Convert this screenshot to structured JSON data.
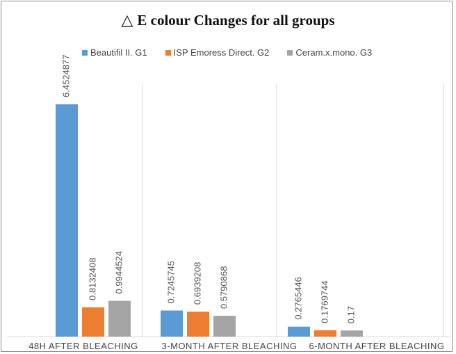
{
  "chart_data": {
    "type": "bar",
    "title_symbol": "△",
    "title": "E colour Changes for all groups",
    "categories": [
      "48H AFTER BLEACHING",
      "3-MONTH AFTER BLEACHING",
      "6-MONTH AFTER BLEACHING"
    ],
    "series": [
      {
        "name": "Beautifil II. G1",
        "color": "#5b9bd5",
        "values": [
          6.4524877,
          0.7245745,
          0.2765446
        ],
        "labels": [
          "6.4524877",
          "0.7245745",
          "0.2765446"
        ]
      },
      {
        "name": "ISP Emoress Direct. G2",
        "color": "#ed7d31",
        "values": [
          0.8132408,
          0.6939208,
          0.1769744
        ],
        "labels": [
          "0.8132408",
          "0.6939208",
          "0.1769744"
        ]
      },
      {
        "name": "Ceram.x.mono. G3",
        "color": "#a5a5a5",
        "values": [
          0.9944524,
          0.5790868,
          0.17
        ],
        "labels": [
          "0.9944524",
          "0.5790868",
          "0.17"
        ]
      }
    ],
    "ylim": [
      0,
      7
    ],
    "grid": false,
    "legend_position": "top",
    "xlabel": "",
    "ylabel": ""
  }
}
